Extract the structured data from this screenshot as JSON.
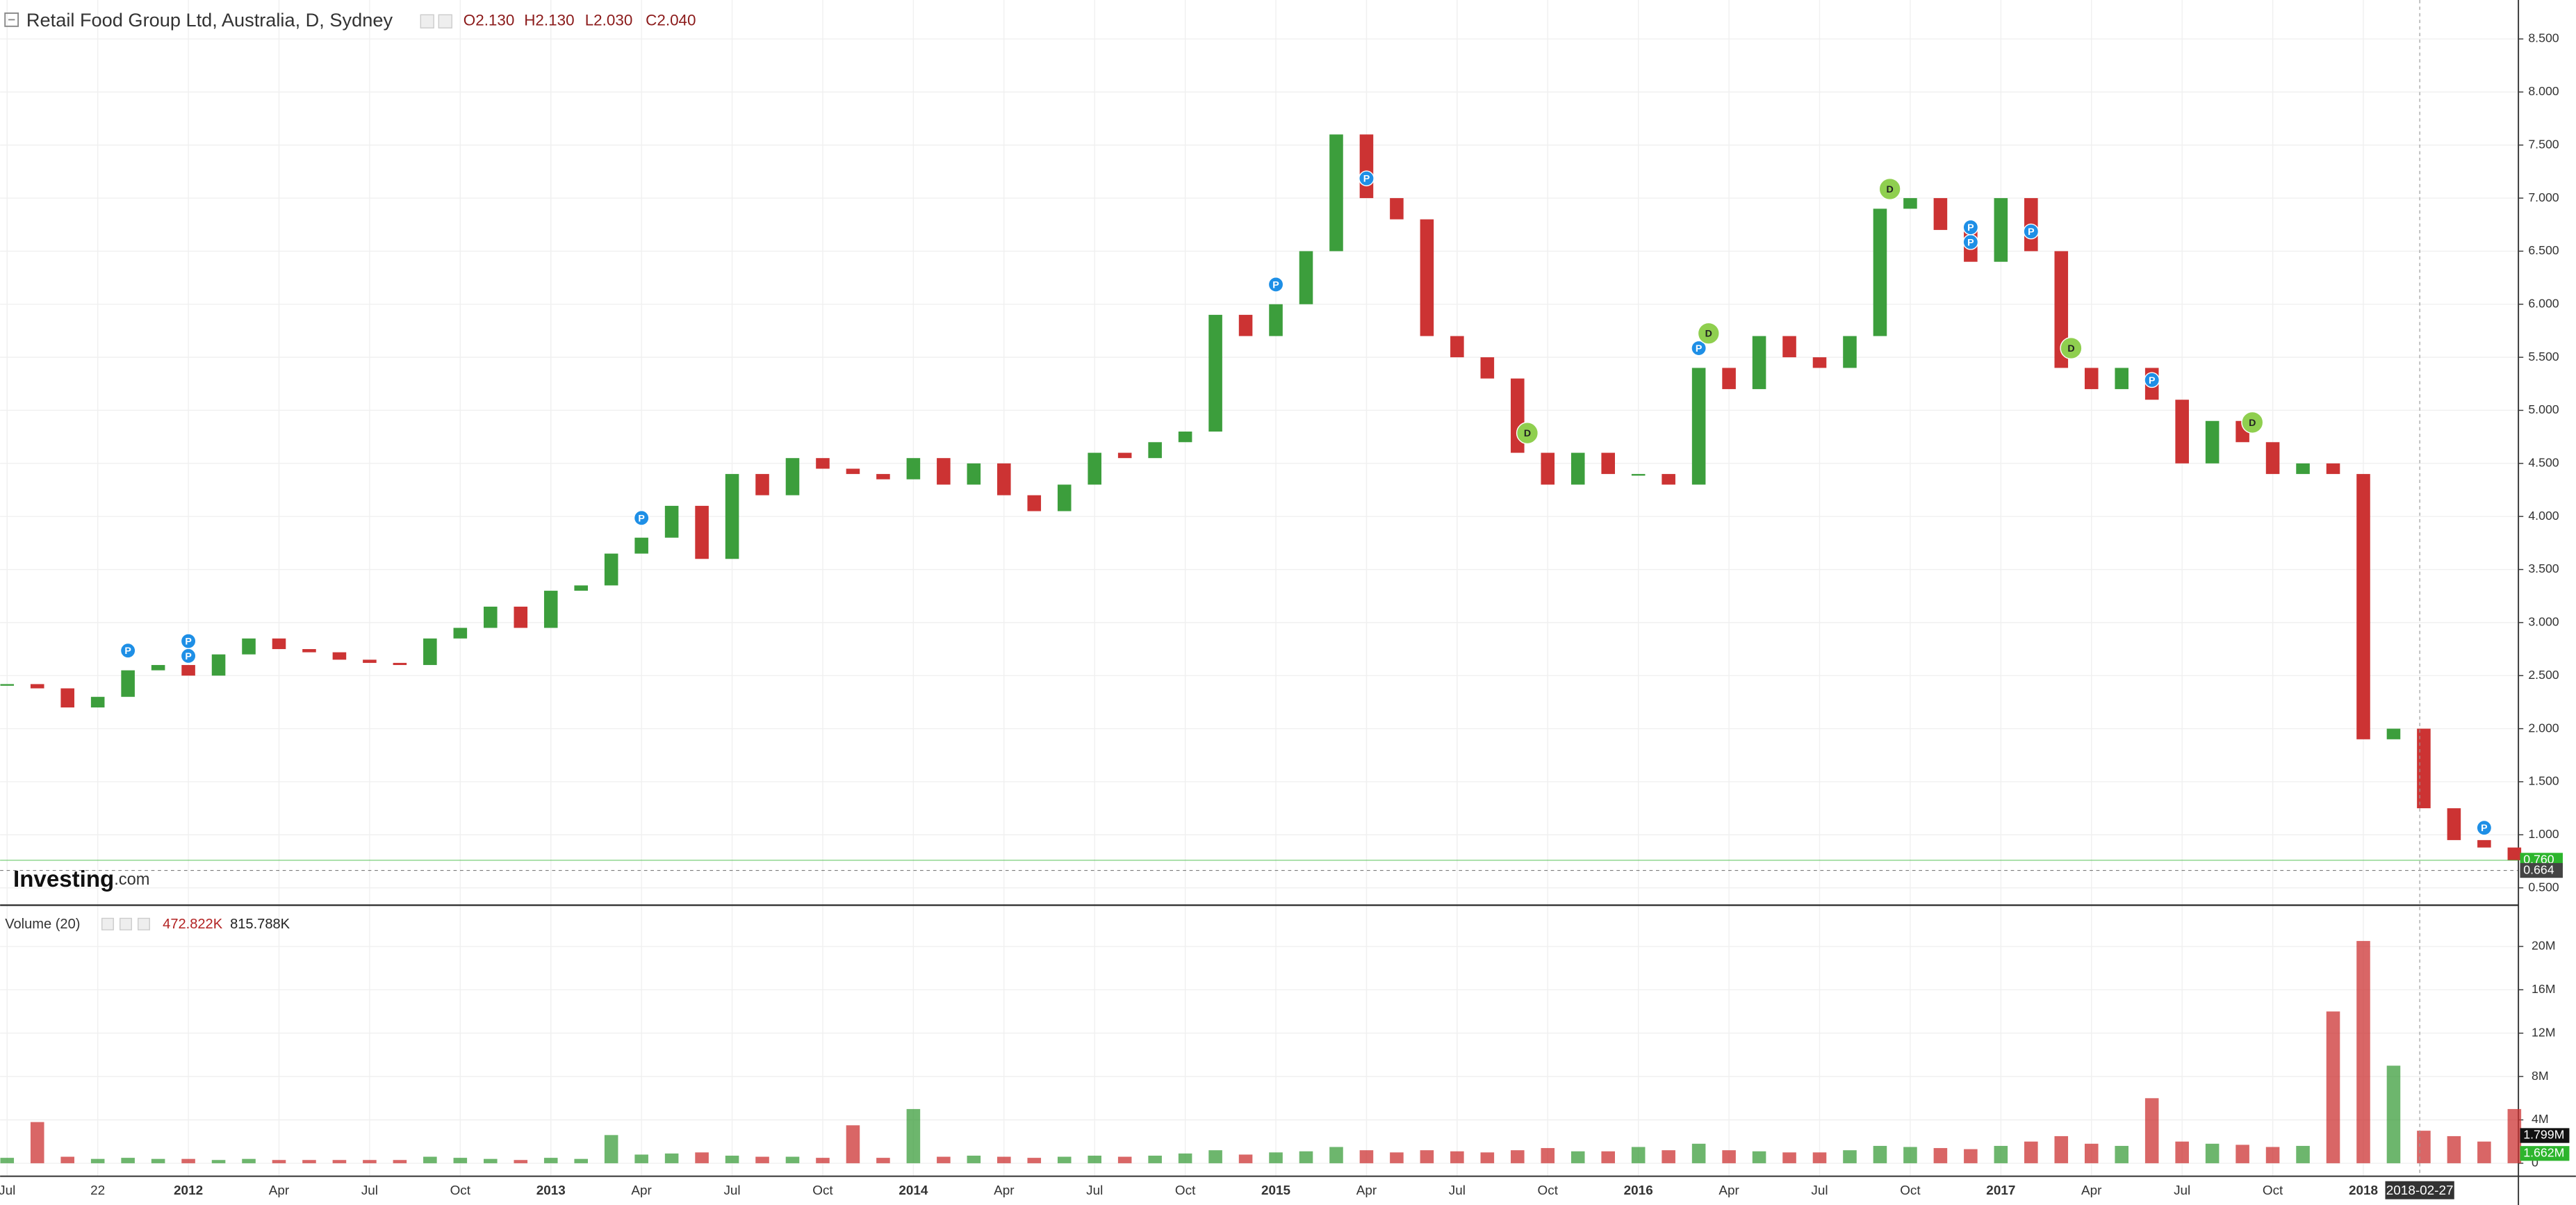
{
  "chart_data": {
    "type": "candlestick",
    "title": "Retail Food Group Ltd, Australia, D, Sydney",
    "legend_values": [
      "O2.130",
      "H2.130",
      "L2.030",
      "C2.040"
    ],
    "logo": [
      "Investing",
      ".com"
    ],
    "volume_title": "Volume (20)",
    "volume_values": [
      "472.822K",
      "815.788K"
    ],
    "colors": {
      "up": "#3c9e3c",
      "down": "#cc3333"
    },
    "grid": true,
    "xlim": [
      "2011-06-24",
      "2018-06-05"
    ],
    "x": [
      "2011-07",
      "2011-08",
      "2011-09",
      "2011-10",
      "2011-11",
      "2011-12",
      "2012-01",
      "2012-02",
      "2012-03",
      "2012-04",
      "2012-05",
      "2012-06",
      "2012-07",
      "2012-08",
      "2012-09",
      "2012-10",
      "2012-11",
      "2012-12",
      "2013-01",
      "2013-02",
      "2013-03",
      "2013-04",
      "2013-05",
      "2013-06",
      "2013-07",
      "2013-08",
      "2013-09",
      "2013-10",
      "2013-11",
      "2013-12",
      "2014-01",
      "2014-02",
      "2014-03",
      "2014-04",
      "2014-05",
      "2014-06",
      "2014-07",
      "2014-08",
      "2014-09",
      "2014-10",
      "2014-11",
      "2014-12",
      "2015-01",
      "2015-02",
      "2015-03",
      "2015-04",
      "2015-05",
      "2015-06",
      "2015-07",
      "2015-08",
      "2015-09",
      "2015-10",
      "2015-11",
      "2015-12",
      "2016-01",
      "2016-02",
      "2016-03",
      "2016-04",
      "2016-05",
      "2016-06",
      "2016-07",
      "2016-08",
      "2016-09",
      "2016-10",
      "2016-11",
      "2016-12",
      "2017-01",
      "2017-02",
      "2017-03",
      "2017-04",
      "2017-05",
      "2017-06",
      "2017-07",
      "2017-08",
      "2017-09",
      "2017-10",
      "2017-11",
      "2017-12",
      "2018-01",
      "2018-02",
      "2018-03",
      "2018-04",
      "2018-05",
      "2018-06"
    ],
    "values": [
      2.42,
      2.38,
      2.2,
      2.3,
      2.55,
      2.6,
      2.5,
      2.7,
      2.85,
      2.75,
      2.72,
      2.65,
      2.62,
      2.6,
      2.85,
      2.95,
      3.15,
      2.95,
      3.3,
      3.35,
      3.65,
      3.8,
      4.1,
      3.6,
      4.4,
      4.2,
      4.55,
      4.45,
      4.4,
      4.35,
      4.55,
      4.3,
      4.5,
      4.2,
      4.05,
      4.3,
      4.6,
      4.55,
      4.7,
      4.8,
      5.9,
      5.7,
      6.0,
      6.5,
      7.6,
      7.0,
      6.8,
      5.7,
      5.5,
      5.3,
      4.6,
      4.3,
      4.6,
      4.4,
      4.4,
      4.3,
      5.4,
      5.2,
      5.7,
      5.5,
      5.4,
      5.7,
      6.9,
      7.0,
      6.7,
      6.4,
      7.0,
      6.5,
      5.4,
      5.2,
      5.4,
      5.1,
      4.5,
      4.9,
      4.7,
      4.4,
      4.5,
      4.4,
      1.9,
      2.0,
      1.25,
      0.95,
      0.88,
      0.76
    ],
    "volume": [
      500000,
      3800000,
      600000,
      400000,
      500000,
      400000,
      400000,
      300000,
      400000,
      300000,
      300000,
      300000,
      300000,
      300000,
      600000,
      500000,
      400000,
      300000,
      500000,
      400000,
      2600000,
      800000,
      900000,
      1000000,
      700000,
      600000,
      600000,
      500000,
      3500000,
      500000,
      5000000,
      600000,
      700000,
      600000,
      500000,
      600000,
      700000,
      600000,
      700000,
      900000,
      1200000,
      800000,
      1000000,
      1100000,
      1500000,
      1200000,
      1000000,
      1200000,
      1100000,
      1000000,
      1200000,
      1400000,
      1100000,
      1100000,
      1500000,
      1200000,
      1800000,
      1200000,
      1100000,
      1000000,
      1000000,
      1200000,
      1600000,
      1500000,
      1400000,
      1300000,
      1600000,
      2000000,
      2500000,
      1800000,
      1600000,
      6000000,
      2000000,
      1800000,
      1700000,
      1500000,
      1600000,
      14000000,
      20500000,
      9000000,
      3000000,
      2500000,
      2000000,
      5000000
    ],
    "ylim": [
      0.383,
      8.867
    ],
    "yticks": [
      {
        "value": 0.5,
        "label": "0.500"
      },
      {
        "value": 1,
        "label": "1.000"
      },
      {
        "value": 1.5,
        "label": "1.500"
      },
      {
        "value": 2,
        "label": "2.000"
      },
      {
        "value": 2.5,
        "label": "2.500"
      },
      {
        "value": 3,
        "label": "3.000"
      },
      {
        "value": 3.5,
        "label": "3.500"
      },
      {
        "value": 4,
        "label": "4.000"
      },
      {
        "value": 4.5,
        "label": "4.500"
      },
      {
        "value": 5,
        "label": "5.000"
      },
      {
        "value": 5.5,
        "label": "5.500"
      },
      {
        "value": 6,
        "label": "6.000"
      },
      {
        "value": 6.5,
        "label": "6.500"
      },
      {
        "value": 7,
        "label": "7.000"
      },
      {
        "value": 7.5,
        "label": "7.500"
      },
      {
        "value": 8,
        "label": "8.000"
      },
      {
        "value": 8.5,
        "label": "8.500"
      }
    ],
    "y2lim": [
      -1200000,
      23500000
    ],
    "y2ticks": [
      0,
      {
        "value": 4000000,
        "label": "4M"
      },
      {
        "value": 8000000,
        "label": "8M"
      },
      {
        "value": 12000000,
        "label": "12M"
      },
      {
        "value": 16000000,
        "label": "16M"
      },
      {
        "value": 20000000,
        "label": "20M"
      }
    ],
    "xticks": [
      {
        "value": "2011-07",
        "label": "Jul"
      },
      {
        "value": "2011-10",
        "label": "22"
      },
      {
        "value": "2012-01",
        "label": "2012"
      },
      {
        "value": "2012-04",
        "label": "Apr"
      },
      {
        "value": "2012-07",
        "label": "Jul"
      },
      {
        "value": "2012-10",
        "label": "Oct"
      },
      {
        "value": "2013-01",
        "label": "2013"
      },
      {
        "value": "2013-04",
        "label": "Apr"
      },
      {
        "value": "2013-07",
        "label": "Jul"
      },
      {
        "value": "2013-10",
        "label": "Oct"
      },
      {
        "value": "2014-01",
        "label": "2014"
      },
      {
        "value": "2014-04",
        "label": "Apr"
      },
      {
        "value": "2014-07",
        "label": "Jul"
      },
      {
        "value": "2014-10",
        "label": "Oct"
      },
      {
        "value": "2015-01",
        "label": "2015"
      },
      {
        "value": "2015-04",
        "label": "Apr"
      },
      {
        "value": "2015-07",
        "label": "Jul"
      },
      {
        "value": "2015-10",
        "label": "Oct"
      },
      {
        "value": "2016-01",
        "label": "2016"
      },
      {
        "value": "2016-04",
        "label": "Apr"
      },
      {
        "value": "2016-07",
        "label": "Jul"
      },
      {
        "value": "2016-10",
        "label": "Oct"
      },
      {
        "value": "2017-01",
        "label": "2017"
      },
      {
        "value": "2017-04",
        "label": "Apr"
      },
      {
        "value": "2017-07",
        "label": "Jul"
      },
      {
        "value": "2017-10",
        "label": "Oct"
      },
      {
        "value": "2018-01",
        "label": "2018"
      }
    ],
    "price_labels": [
      {
        "value": 0.76,
        "label": "0.760",
        "color": "#2db52d"
      },
      {
        "value": 0.664,
        "label": "0.664",
        "color": "#444444"
      }
    ],
    "volume_labels": [
      {
        "value": 1799000,
        "label": "1.799M",
        "color": "#111111"
      },
      {
        "value": 1662000,
        "label": "1.662M",
        "color": "#2db52d"
      }
    ],
    "crosshair": "2018-02-27",
    "events": [
      {
        "x": "2011-11",
        "label": "P",
        "color": "#1e8fe6"
      },
      {
        "x": "2012-01",
        "label": "P",
        "color": "#1e8fe6"
      },
      {
        "x": "2012-01",
        "label": "P",
        "color": "#1e8fe6"
      },
      {
        "x": "2013-04",
        "label": "P",
        "color": "#1e8fe6"
      },
      {
        "x": "2015-01",
        "label": "P",
        "color": "#1e8fe6"
      },
      {
        "x": "2015-04",
        "label": "P",
        "color": "#1e8fe6"
      },
      {
        "x": "2015-09",
        "label": "D",
        "color": "#8fcf4f"
      },
      {
        "x": "2016-03",
        "label": "P",
        "color": "#1e8fe6"
      },
      {
        "x": "2016-03",
        "label": "D",
        "color": "#8fcf4f"
      },
      {
        "x": "2016-09",
        "label": "D",
        "color": "#8fcf4f"
      },
      {
        "x": "2016-12",
        "label": "P",
        "color": "#1e8fe6"
      },
      {
        "x": "2016-12",
        "label": "P",
        "color": "#1e8fe6"
      },
      {
        "x": "2017-02",
        "label": "P",
        "color": "#1e8fe6"
      },
      {
        "x": "2017-03",
        "label": "D",
        "color": "#8fcf4f"
      },
      {
        "x": "2017-06",
        "label": "P",
        "color": "#1e8fe6"
      },
      {
        "x": "2017-09",
        "label": "D",
        "color": "#8fcf4f"
      },
      {
        "x": "2018-05",
        "label": "P",
        "color": "#1e8fe6"
      }
    ]
  }
}
